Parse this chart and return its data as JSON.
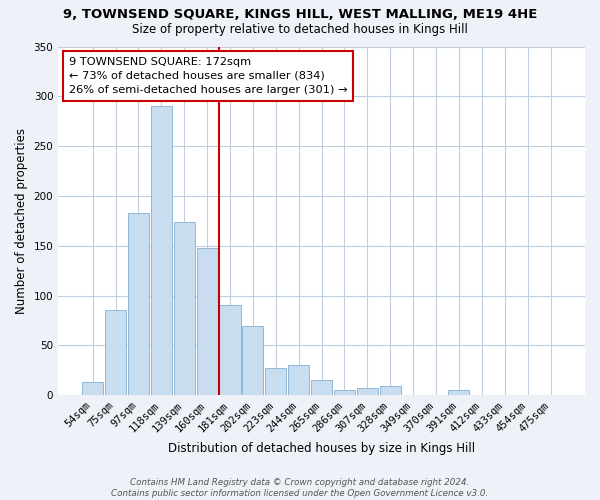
{
  "title": "9, TOWNSEND SQUARE, KINGS HILL, WEST MALLING, ME19 4HE",
  "subtitle": "Size of property relative to detached houses in Kings Hill",
  "xlabel": "Distribution of detached houses by size in Kings Hill",
  "ylabel": "Number of detached properties",
  "bar_labels": [
    "54sqm",
    "75sqm",
    "97sqm",
    "118sqm",
    "139sqm",
    "160sqm",
    "181sqm",
    "202sqm",
    "223sqm",
    "244sqm",
    "265sqm",
    "286sqm",
    "307sqm",
    "328sqm",
    "349sqm",
    "370sqm",
    "391sqm",
    "412sqm",
    "433sqm",
    "454sqm",
    "475sqm"
  ],
  "bar_values": [
    13,
    86,
    183,
    290,
    174,
    148,
    91,
    69,
    27,
    30,
    15,
    5,
    7,
    9,
    0,
    0,
    5,
    0,
    0,
    0,
    0
  ],
  "bar_color": "#c9ddf0",
  "bar_edge_color": "#92b8d8",
  "vline_x": 5.5,
  "vline_color": "#cc0000",
  "annotation_line1": "9 TOWNSEND SQUARE: 172sqm",
  "annotation_line2": "← 73% of detached houses are smaller (834)",
  "annotation_line3": "26% of semi-detached houses are larger (301) →",
  "ylim": [
    0,
    350
  ],
  "yticks": [
    0,
    50,
    100,
    150,
    200,
    250,
    300,
    350
  ],
  "footnote": "Contains HM Land Registry data © Crown copyright and database right 2024.\nContains public sector information licensed under the Open Government Licence v3.0.",
  "bg_color": "#eef2f8",
  "plot_bg_color": "#ffffff",
  "grid_color": "#c0cfe0"
}
